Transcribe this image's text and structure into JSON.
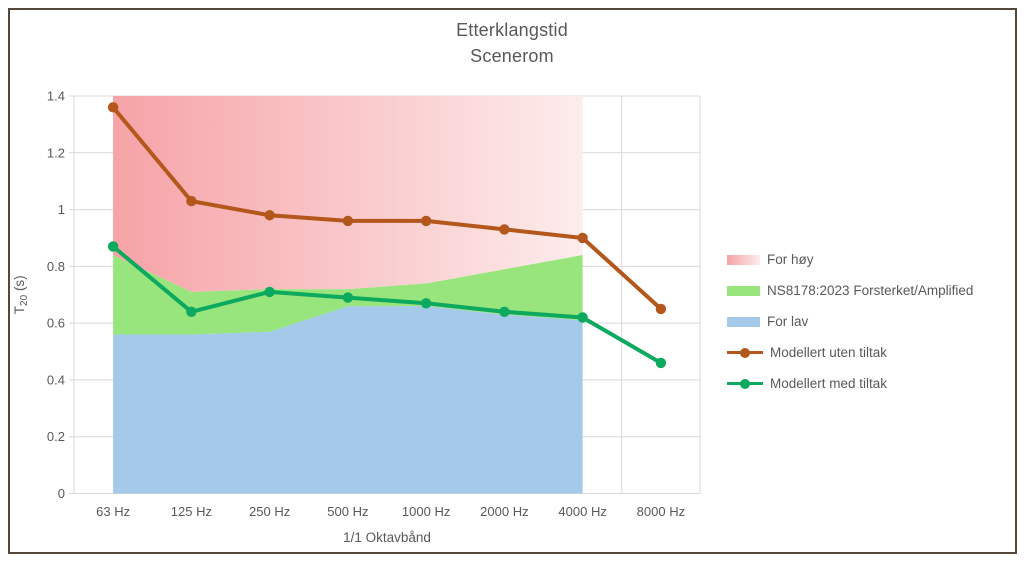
{
  "window": {
    "background": "#ffffff",
    "frame_border_color": "#54483c"
  },
  "chart_data": {
    "type": "combo-area-line",
    "title": "Etterklangstid",
    "subtitle": "Scenerom",
    "text_color": "#595959",
    "grid_color": "#d9d9d9",
    "x_axis": {
      "title": "1/1 Oktavbånd",
      "categories": [
        "63 Hz",
        "125 Hz",
        "250 Hz",
        "500 Hz",
        "1000 Hz",
        "2000 Hz",
        "4000 Hz",
        "8000 Hz"
      ]
    },
    "y_axis": {
      "title_base": "T",
      "title_sub": "20",
      "title_unit": " (s)",
      "min": 0,
      "max": 1.4,
      "tick_values": [
        0,
        0.2,
        0.4,
        0.6,
        0.8,
        1,
        1.2,
        1.4
      ],
      "tick_labels": [
        "0",
        "0.2",
        "0.4",
        "0.6",
        "0.8",
        "1",
        "1.2",
        "1.4"
      ]
    },
    "band_areas": {
      "note": "stacked tolerance band drawn from 63 Hz to 4000 Hz only",
      "span_category_count": 7,
      "lower_limit_values": [
        0.56,
        0.56,
        0.57,
        0.66,
        0.66,
        0.63,
        0.61
      ],
      "upper_limit_values": [
        0.84,
        0.71,
        0.72,
        0.72,
        0.74,
        0.79,
        0.84
      ],
      "ceiling": 1.4,
      "for_hoy": {
        "label": "For høy",
        "fill_from": "#f6a3a7",
        "fill_to": "#fdecec"
      },
      "band": {
        "label": "NS8178:2023 Forsterket/Amplified",
        "fill": "#97e57c"
      },
      "for_lav": {
        "label": "For lav",
        "fill": "#a4c9e9"
      }
    },
    "series": [
      {
        "name": "Modellert uten tiltak",
        "color": "#b3571c",
        "values": [
          1.36,
          1.03,
          0.98,
          0.96,
          0.96,
          0.93,
          0.9,
          0.65
        ]
      },
      {
        "name": "Modellert med tiltak",
        "color": "#0ca95f",
        "values": [
          0.87,
          0.64,
          0.71,
          0.69,
          0.67,
          0.64,
          0.62,
          0.46
        ]
      }
    ],
    "legend": [
      {
        "label": "For høy",
        "swatch": "gradient-area",
        "from": "#f6a3a7",
        "to": "#fdecec"
      },
      {
        "label": "NS8178:2023 Forsterket/Amplified",
        "swatch": "area",
        "color": "#97e57c"
      },
      {
        "label": "For lav",
        "swatch": "area",
        "color": "#a4c9e9"
      },
      {
        "label": "Modellert uten tiltak",
        "swatch": "line-marker",
        "color": "#b3571c"
      },
      {
        "label": "Modellert med tiltak",
        "swatch": "line-marker",
        "color": "#0ca95f"
      }
    ]
  }
}
